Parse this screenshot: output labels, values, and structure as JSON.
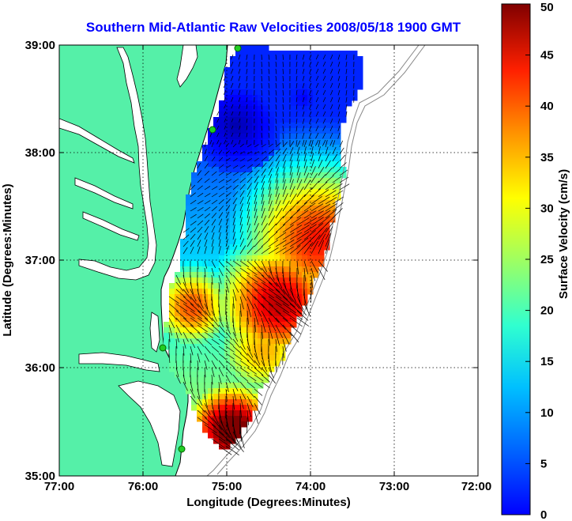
{
  "chart_data": {
    "type": "heatmap",
    "title": "Southern Mid-Atlantic Raw Velocities 2008/05/18 1900 GMT",
    "xlabel": "Longitude (Degrees:Minutes)",
    "ylabel": "Latitude (Degrees:Minutes)",
    "colorbar_label": "Surface Velocity (cm/s)",
    "x_ticks": [
      "77:00",
      "76:00",
      "75:00",
      "74:00",
      "73:00",
      "72:00"
    ],
    "y_ticks": [
      "39:00",
      "38:00",
      "37:00",
      "36:00",
      "35:00"
    ],
    "colorbar_ticks": [
      "50",
      "45",
      "40",
      "35",
      "30",
      "25",
      "20",
      "15",
      "10",
      "5",
      "0"
    ],
    "xlim": [
      -77,
      -72
    ],
    "ylim": [
      35,
      39
    ],
    "clim": [
      0,
      50
    ],
    "colormap": "jet",
    "grid": true,
    "colorbar_placement": "right",
    "land_color": "#55f0a8",
    "coastline_color": "#000000",
    "bathymetry_color": "#888888",
    "station_color": "#22cc22",
    "vector_color": "#000000"
  }
}
